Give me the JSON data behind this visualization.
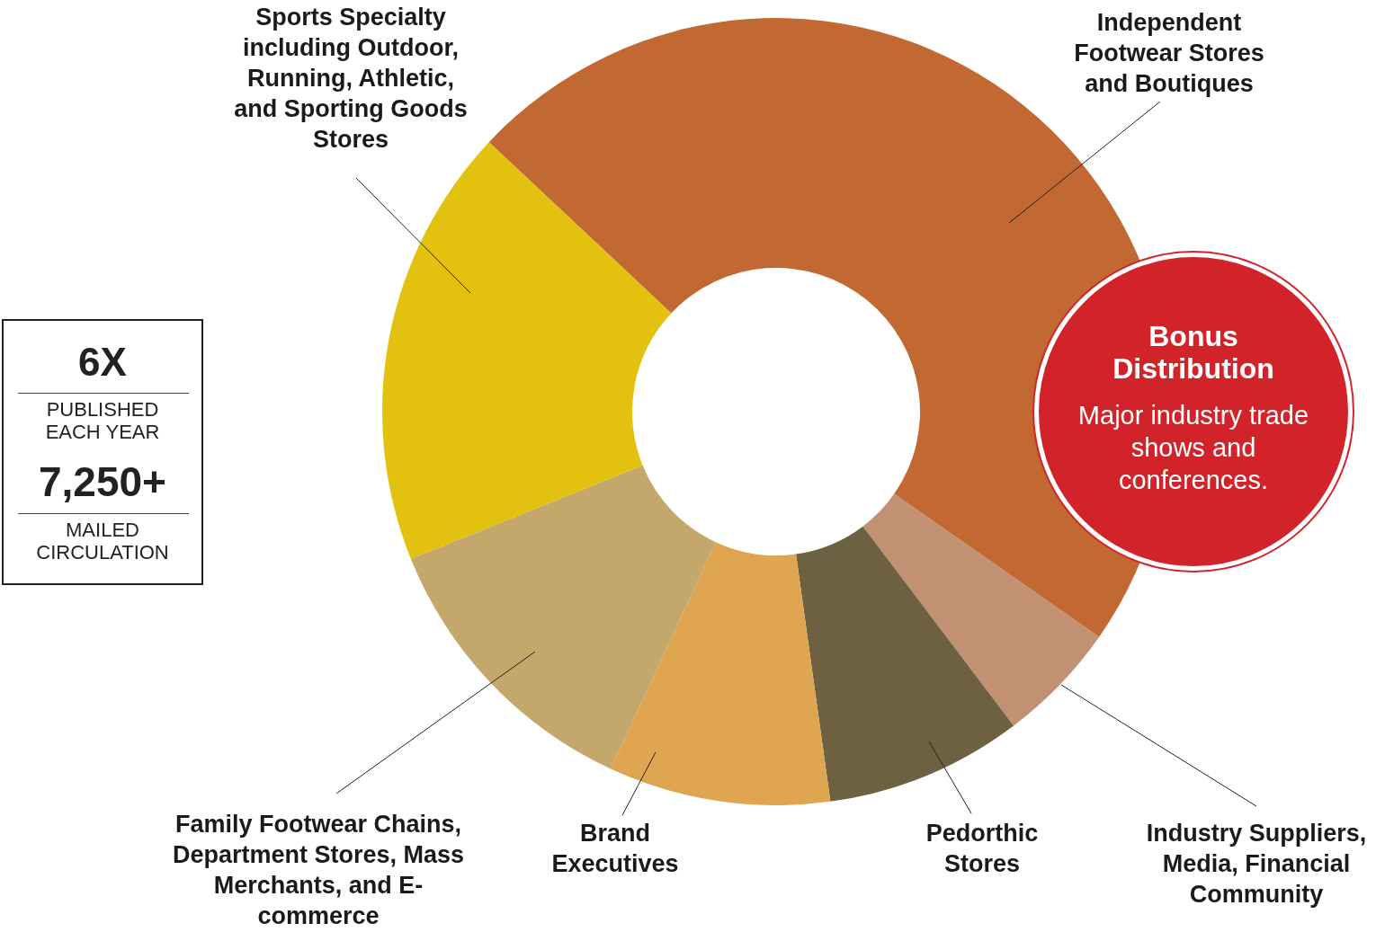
{
  "chart_data": {
    "type": "donut",
    "categories": [
      "Independent Footwear Stores and Boutiques",
      "Industry Suppliers, Media, Financial Community",
      "Pedorthic Stores",
      "Brand Executives",
      "Family Footwear Chains, Department Stores, Mass Merchants, and E-commerce",
      "Sports Specialty including Outdoor, Running, Athletic, and Sporting Goods Stores"
    ],
    "values": [
      47.7,
      5,
      8.1,
      9.1,
      12,
      18.1
    ],
    "colors": [
      "#c26832",
      "#c29072",
      "#6e6142",
      "#e0a550",
      "#c4a76a",
      "#e3c20f"
    ],
    "annotations": [
      "6X",
      "PUBLISHED EACH YEAR",
      "7,250+",
      "MAILED CIRCULATION",
      "Bonus Distribution",
      "Major industry trade shows and conferences."
    ]
  }
}
